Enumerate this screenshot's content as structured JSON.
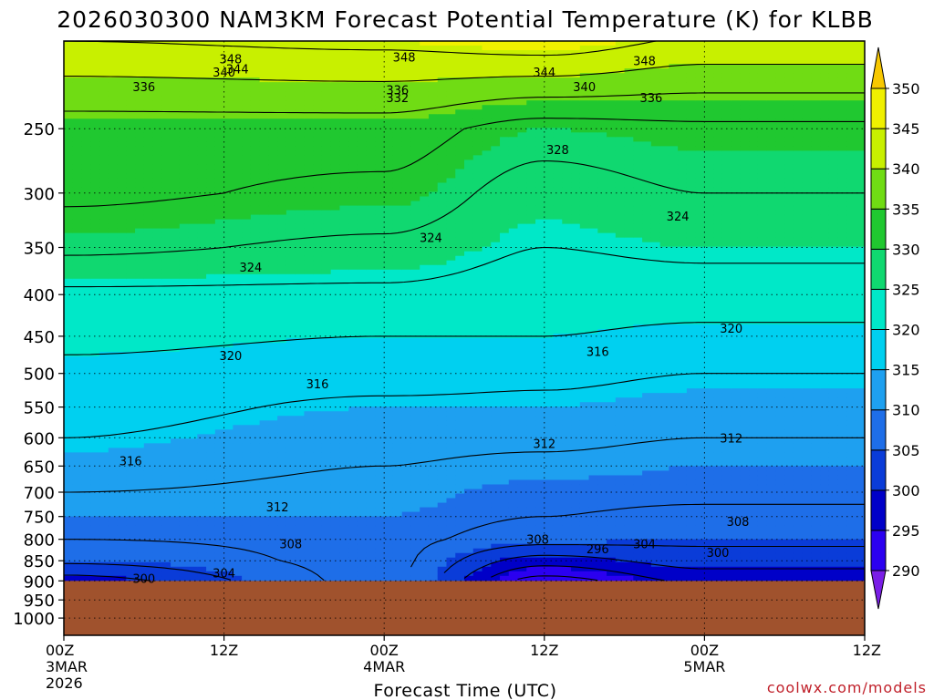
{
  "chart_data": {
    "type": "heatmap",
    "title": "2026030300 NAM3KM Forecast Potential Temperature (K) for KLBB",
    "xlabel": "Forecast Time (UTC)",
    "ylabel": "",
    "credit": "coolwx.com/models",
    "x_unit": "forecast hours",
    "x_range": [
      0,
      60
    ],
    "y_unit": "hPa",
    "y_range": [
      1050,
      195
    ],
    "surface_pressure_hPa": 900,
    "x_ticks": [
      {
        "hour": 0,
        "label": "00Z",
        "sub1": "3MAR",
        "sub2": "2026"
      },
      {
        "hour": 12,
        "label": "12Z",
        "sub1": "",
        "sub2": ""
      },
      {
        "hour": 24,
        "label": "00Z",
        "sub1": "4MAR",
        "sub2": ""
      },
      {
        "hour": 36,
        "label": "12Z",
        "sub1": "",
        "sub2": ""
      },
      {
        "hour": 48,
        "label": "00Z",
        "sub1": "5MAR",
        "sub2": ""
      },
      {
        "hour": 60,
        "label": "12Z",
        "sub1": "",
        "sub2": ""
      }
    ],
    "y_ticks": [
      250,
      300,
      350,
      400,
      450,
      500,
      550,
      600,
      650,
      700,
      750,
      800,
      850,
      900,
      950,
      1000
    ],
    "colorbar": {
      "levels": [
        290,
        295,
        300,
        305,
        310,
        315,
        320,
        325,
        330,
        335,
        340,
        345,
        350
      ],
      "labels": [
        "290",
        "295",
        "300",
        "305",
        "310",
        "315",
        "320",
        "325",
        "330",
        "335",
        "340",
        "345",
        "350"
      ],
      "colors": [
        "#7a1ee6",
        "#2b00f0",
        "#0000c8",
        "#0a3cd8",
        "#1e6ee8",
        "#1ea0f0",
        "#00d0f0",
        "#00e8c8",
        "#10d870",
        "#20c830",
        "#70dc14",
        "#c8f000",
        "#f0f000",
        "#f8c800"
      ]
    },
    "ground_color": "#a0522d",
    "contour_interval_K": 4,
    "series": [
      {
        "name": "theta_profile_00Z_3MAR",
        "hour": 0,
        "pressure_hPa": [
          900,
          850,
          800,
          750,
          700,
          650,
          600,
          550,
          500,
          450,
          400,
          350,
          300,
          250,
          200
        ],
        "theta_K": [
          298,
          305,
          308,
          310,
          312,
          314,
          316,
          318,
          319,
          321,
          323,
          329,
          333,
          334,
          343
        ]
      },
      {
        "name": "theta_profile_00Z_4MAR",
        "hour": 24,
        "pressure_hPa": [
          900,
          850,
          800,
          750,
          700,
          650,
          600,
          550,
          500,
          450,
          400,
          350,
          300,
          250,
          200
        ],
        "theta_K": [
          309,
          309,
          309,
          310,
          311,
          312,
          313,
          315,
          318,
          320,
          323,
          327,
          331,
          334,
          344
        ]
      },
      {
        "name": "theta_profile_12Z_4MAR",
        "hour": 36,
        "pressure_hPa": [
          900,
          850,
          800,
          750,
          700,
          650,
          600,
          550,
          500,
          450,
          400,
          350,
          300,
          250,
          200
        ],
        "theta_K": [
          290,
          298,
          306,
          308,
          309,
          311,
          313,
          315,
          317,
          320,
          322,
          324,
          326,
          330,
          345
        ]
      },
      {
        "name": "theta_profile_00Z_5MAR",
        "hour": 48,
        "pressure_hPa": [
          900,
          850,
          800,
          750,
          700,
          650,
          600,
          550,
          500,
          450,
          400,
          350,
          300,
          250,
          200
        ],
        "theta_K": [
          297,
          302,
          305,
          307,
          309,
          310,
          312,
          314,
          316,
          319,
          322,
          325,
          328,
          331,
          342
        ]
      }
    ],
    "contour_labels": [
      {
        "text": "348",
        "hour": 12.5,
        "pressure_hPa": 205
      },
      {
        "text": "348",
        "hour": 25.5,
        "pressure_hPa": 204
      },
      {
        "text": "348",
        "hour": 43.5,
        "pressure_hPa": 206
      },
      {
        "text": "344",
        "hour": 13.0,
        "pressure_hPa": 211
      },
      {
        "text": "344",
        "hour": 36.0,
        "pressure_hPa": 213
      },
      {
        "text": "340",
        "hour": 12.0,
        "pressure_hPa": 213
      },
      {
        "text": "340",
        "hour": 39.0,
        "pressure_hPa": 222
      },
      {
        "text": "336",
        "hour": 6.0,
        "pressure_hPa": 222
      },
      {
        "text": "336",
        "hour": 25.0,
        "pressure_hPa": 224
      },
      {
        "text": "336",
        "hour": 44.0,
        "pressure_hPa": 229
      },
      {
        "text": "332",
        "hour": 25.0,
        "pressure_hPa": 229
      },
      {
        "text": "328",
        "hour": 37.0,
        "pressure_hPa": 265
      },
      {
        "text": "324",
        "hour": 27.5,
        "pressure_hPa": 340
      },
      {
        "text": "324",
        "hour": 46.0,
        "pressure_hPa": 320
      },
      {
        "text": "324",
        "hour": 14.0,
        "pressure_hPa": 370
      },
      {
        "text": "320",
        "hour": 12.5,
        "pressure_hPa": 475
      },
      {
        "text": "320",
        "hour": 50.0,
        "pressure_hPa": 440
      },
      {
        "text": "316",
        "hour": 19.0,
        "pressure_hPa": 515
      },
      {
        "text": "316",
        "hour": 40.0,
        "pressure_hPa": 470
      },
      {
        "text": "316",
        "hour": 5.0,
        "pressure_hPa": 640
      },
      {
        "text": "312",
        "hour": 16.0,
        "pressure_hPa": 730
      },
      {
        "text": "312",
        "hour": 36.0,
        "pressure_hPa": 610
      },
      {
        "text": "312",
        "hour": 50.0,
        "pressure_hPa": 600
      },
      {
        "text": "308",
        "hour": 17.0,
        "pressure_hPa": 810
      },
      {
        "text": "308",
        "hour": 35.5,
        "pressure_hPa": 800
      },
      {
        "text": "308",
        "hour": 50.5,
        "pressure_hPa": 760
      },
      {
        "text": "304",
        "hour": 12.0,
        "pressure_hPa": 880
      },
      {
        "text": "304",
        "hour": 43.5,
        "pressure_hPa": 810
      },
      {
        "text": "300",
        "hour": 6.0,
        "pressure_hPa": 893
      },
      {
        "text": "300",
        "hour": 49.0,
        "pressure_hPa": 830
      },
      {
        "text": "296",
        "hour": 40.0,
        "pressure_hPa": 822
      }
    ]
  }
}
